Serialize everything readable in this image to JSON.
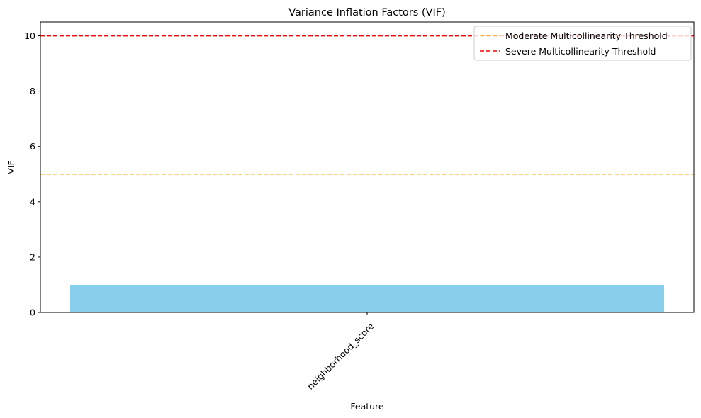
{
  "chart_data": {
    "type": "bar",
    "title": "Variance Inflation Factors (VIF)",
    "xlabel": "Feature",
    "ylabel": "VIF",
    "categories": [
      "neighborhood_score"
    ],
    "values": [
      1.0
    ],
    "ylim": [
      0,
      10.5
    ],
    "yticks": [
      0,
      2,
      4,
      6,
      8,
      10
    ],
    "ytick_labels": [
      "0",
      "2",
      "4",
      "6",
      "8",
      "10"
    ],
    "grid": false,
    "bar_color": "#87ceeb",
    "thresholds": [
      {
        "name": "Moderate Multicollinearity Threshold",
        "value": 5,
        "color": "#ffa500",
        "style": "dashed"
      },
      {
        "name": "Severe Multicollinearity Threshold",
        "value": 10,
        "color": "#ff0000",
        "style": "dashed"
      }
    ],
    "legend_position": "top-right"
  }
}
